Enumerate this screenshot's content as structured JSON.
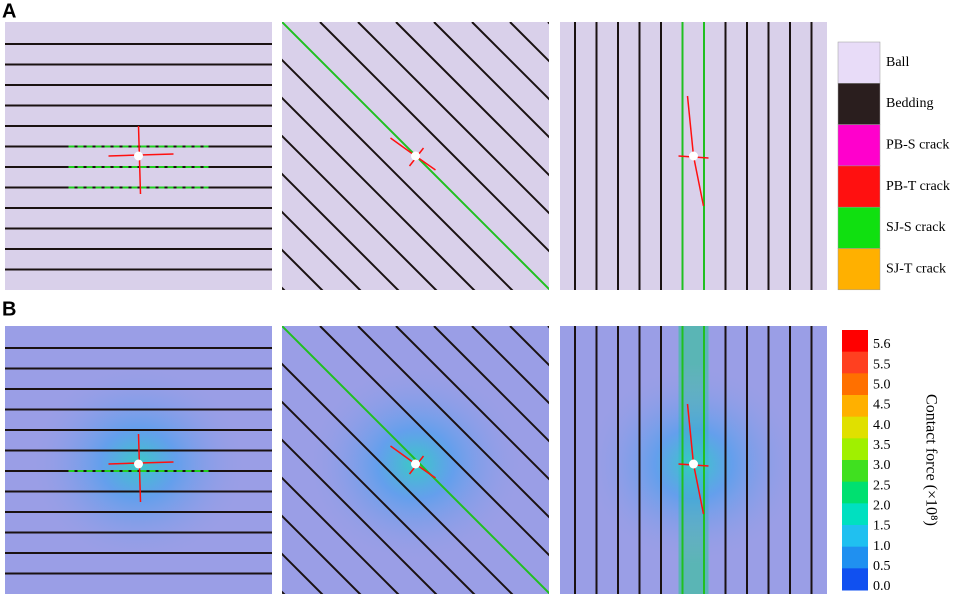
{
  "panel_labels": [
    "A",
    "B"
  ],
  "legend": [
    {
      "label": "Ball",
      "color": "#e8dcf8"
    },
    {
      "label": "Bedding",
      "color": "#2a1e1e"
    },
    {
      "label": "PB-S crack",
      "color": "#ff00cc"
    },
    {
      "label": "PB-T crack",
      "color": "#ff1010"
    },
    {
      "label": "SJ-S crack",
      "color": "#10e010"
    },
    {
      "label": "SJ-T crack",
      "color": "#ffb000"
    }
  ],
  "colorbar": {
    "title": "Contact force (×10⁸)",
    "ticks": [
      "5.6",
      "5.5",
      "5.0",
      "4.5",
      "4.0",
      "3.5",
      "3.0",
      "2.5",
      "2.0",
      "1.5",
      "1.0",
      "0.5",
      "0.0"
    ],
    "colors": [
      "#ff0000",
      "#ff4020",
      "#ff7000",
      "#ffb000",
      "#e0e000",
      "#a0f000",
      "#40e020",
      "#00e070",
      "#00e0c0",
      "#20c0f0",
      "#2090f0",
      "#1050f0"
    ]
  }
}
